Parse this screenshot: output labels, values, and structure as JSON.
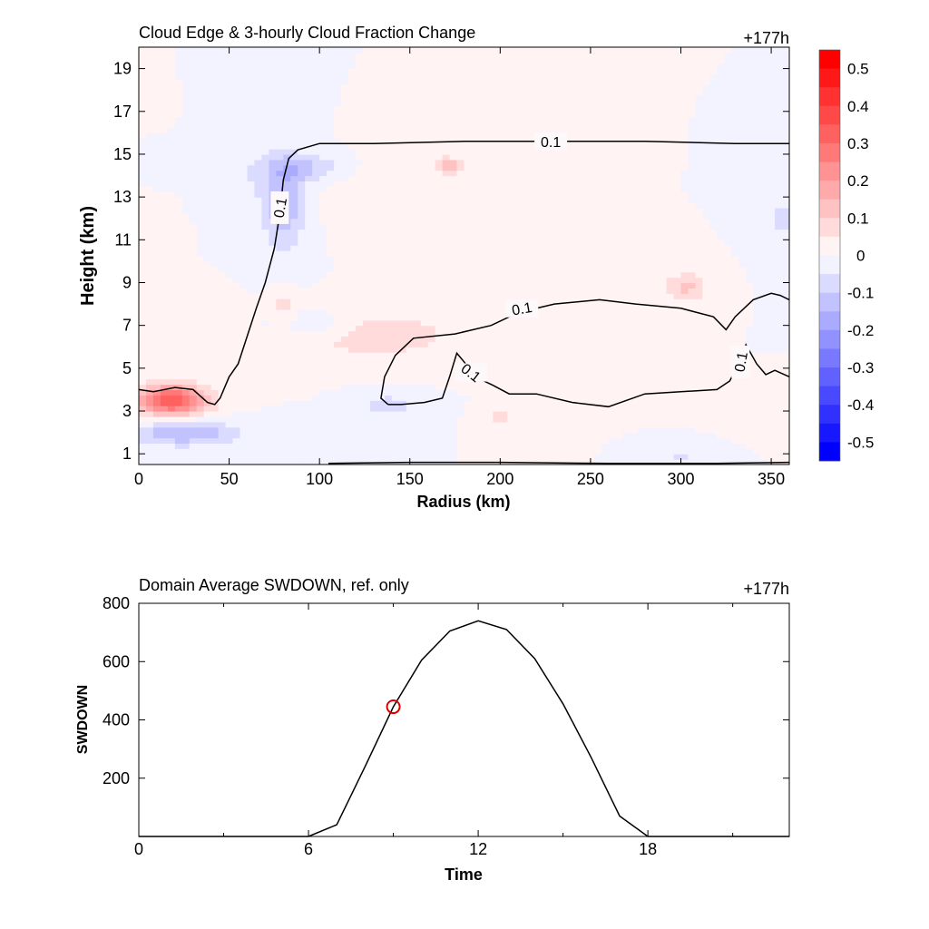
{
  "chart_data": [
    {
      "type": "heatmap",
      "title": "Cloud Edge & 3-hourly Cloud Fraction Change",
      "time_label": "+177h",
      "xlabel": "Radius (km)",
      "ylabel": "Height (km)",
      "xlim": [
        0,
        360
      ],
      "ylim": [
        0.5,
        20
      ],
      "xticks": [
        0,
        50,
        100,
        150,
        200,
        250,
        300,
        350
      ],
      "yticks": [
        1,
        3,
        5,
        7,
        9,
        11,
        13,
        15,
        17,
        19
      ],
      "colorbar": {
        "ticks": [
          "0.5",
          "0.4",
          "0.3",
          "0.2",
          "0.1",
          "0",
          "-0.1",
          "-0.2",
          "-0.3",
          "-0.4",
          "-0.5"
        ],
        "range": [
          -0.55,
          0.55
        ],
        "levels": 22,
        "low_color": "#0000ff",
        "mid_color": "#ffffff",
        "high_color": "#ff0000"
      },
      "anomalies": [
        {
          "x": 18,
          "y": 3.5,
          "rx": 20,
          "ry": 0.7,
          "value": 0.35
        },
        {
          "x": 25,
          "y": 2.0,
          "rx": 30,
          "ry": 0.6,
          "value": -0.15
        },
        {
          "x": 80,
          "y": 12.8,
          "rx": 12,
          "ry": 2.2,
          "value": -0.15
        },
        {
          "x": 92,
          "y": 14.4,
          "rx": 20,
          "ry": 0.6,
          "value": -0.1
        },
        {
          "x": 130,
          "y": 6.6,
          "rx": 45,
          "ry": 1.1,
          "value": 0.09
        },
        {
          "x": 100,
          "y": 7.0,
          "rx": 25,
          "ry": 0.7,
          "value": -0.06
        },
        {
          "x": 172,
          "y": 14.5,
          "rx": 9,
          "ry": 0.4,
          "value": 0.12
        },
        {
          "x": 303,
          "y": 8.8,
          "rx": 12,
          "ry": 0.7,
          "value": 0.11
        },
        {
          "x": 138,
          "y": 3.3,
          "rx": 16,
          "ry": 0.5,
          "value": -0.08
        },
        {
          "x": 80,
          "y": 8.0,
          "rx": 6,
          "ry": 0.8,
          "value": 0.07
        },
        {
          "x": 200,
          "y": 2.8,
          "rx": 8,
          "ry": 0.4,
          "value": 0.08
        },
        {
          "x": 230,
          "y": 9.2,
          "rx": 40,
          "ry": 0.8,
          "value": 0.04
        },
        {
          "x": 355,
          "y": 12.0,
          "rx": 10,
          "ry": 1.5,
          "value": -0.06
        },
        {
          "x": 300,
          "y": 0.9,
          "rx": 8,
          "ry": 0.3,
          "value": -0.08
        },
        {
          "x": 350,
          "y": 3.6,
          "rx": 15,
          "ry": 0.5,
          "value": 0.05
        },
        {
          "x": 60,
          "y": 14.0,
          "rx": 10,
          "ry": 1.0,
          "value": -0.04
        },
        {
          "x": 140,
          "y": 13.0,
          "rx": 30,
          "ry": 1.5,
          "value": 0.04
        }
      ],
      "contours": [
        {
          "label": "0.1",
          "label_pos": {
            "x": 228,
            "y": 15.6
          },
          "label_rot": 0,
          "points": [
            [
              0,
              4.0
            ],
            [
              8,
              3.9
            ],
            [
              20,
              4.1
            ],
            [
              30,
              4.0
            ],
            [
              38,
              3.4
            ],
            [
              42,
              3.3
            ],
            [
              45,
              3.6
            ],
            [
              50,
              4.6
            ],
            [
              55,
              5.2
            ],
            [
              60,
              6.5
            ],
            [
              65,
              7.8
            ],
            [
              70,
              9.0
            ],
            [
              75,
              10.6
            ],
            [
              78,
              12.2
            ],
            [
              80,
              13.8
            ],
            [
              83,
              14.8
            ],
            [
              88,
              15.2
            ],
            [
              100,
              15.5
            ],
            [
              130,
              15.5
            ],
            [
              180,
              15.6
            ],
            [
              230,
              15.6
            ],
            [
              280,
              15.6
            ],
            [
              330,
              15.5
            ],
            [
              360,
              15.5
            ]
          ]
        },
        {
          "label": "0.1",
          "label_pos": {
            "x": 212,
            "y": 7.8
          },
          "label_rot": -10,
          "points": [
            [
              138,
              3.3
            ],
            [
              134,
              3.6
            ],
            [
              136,
              4.6
            ],
            [
              142,
              5.6
            ],
            [
              152,
              6.4
            ],
            [
              175,
              6.6
            ],
            [
              195,
              7.0
            ],
            [
              210,
              7.6
            ],
            [
              230,
              8.0
            ],
            [
              255,
              8.2
            ],
            [
              275,
              8.0
            ],
            [
              300,
              7.8
            ],
            [
              318,
              7.4
            ],
            [
              325,
              6.8
            ],
            [
              330,
              7.4
            ],
            [
              340,
              8.2
            ],
            [
              350,
              8.5
            ],
            [
              355,
              8.4
            ],
            [
              360,
              8.2
            ]
          ]
        },
        {
          "label": "0.1",
          "label_pos": {
            "x": 184,
            "y": 4.8
          },
          "label_rot": 38,
          "points": [
            [
              138,
              3.3
            ],
            [
              145,
              3.3
            ],
            [
              158,
              3.4
            ],
            [
              168,
              3.6
            ],
            [
              172,
              4.6
            ],
            [
              176,
              5.7
            ],
            [
              180,
              5.3
            ],
            [
              186,
              4.6
            ],
            [
              196,
              4.2
            ],
            [
              205,
              3.8
            ],
            [
              220,
              3.8
            ],
            [
              240,
              3.4
            ],
            [
              260,
              3.2
            ],
            [
              280,
              3.8
            ],
            [
              300,
              3.9
            ],
            [
              320,
              4.0
            ],
            [
              327,
              4.4
            ],
            [
              332,
              5.2
            ],
            [
              336,
              6.1
            ],
            [
              342,
              5.2
            ],
            [
              347,
              4.7
            ],
            [
              352,
              4.9
            ],
            [
              360,
              4.6
            ]
          ]
        },
        {
          "label": "",
          "points": [
            [
              105,
              0.55
            ],
            [
              150,
              0.6
            ],
            [
              200,
              0.6
            ],
            [
              260,
              0.55
            ],
            [
              320,
              0.55
            ],
            [
              360,
              0.6
            ]
          ]
        }
      ],
      "vertical_labels": [
        {
          "text": "0.1",
          "x": 78,
          "y": 12.5
        },
        {
          "text": "0.1",
          "x": 333,
          "y": 5.3
        }
      ]
    },
    {
      "type": "line",
      "title": "Domain Average SWDOWN, ref. only",
      "time_label": "+177h",
      "xlabel": "Time",
      "ylabel": "SWDOWN",
      "xlim": [
        0,
        23
      ],
      "ylim": [
        0,
        800
      ],
      "xticks": [
        0,
        6,
        12,
        18
      ],
      "yticks": [
        200,
        400,
        600,
        800
      ],
      "x": [
        0,
        1,
        2,
        3,
        4,
        5,
        6,
        7,
        8,
        9,
        10,
        11,
        12,
        13,
        14,
        15,
        16,
        17,
        18,
        19,
        20,
        21,
        22,
        23
      ],
      "series": [
        {
          "values": [
            0,
            0,
            0,
            0,
            0,
            0,
            0,
            40,
            240,
            445,
            605,
            705,
            740,
            710,
            610,
            455,
            270,
            70,
            0,
            0,
            0,
            0,
            0,
            0
          ],
          "color": "#000000"
        }
      ],
      "marker": {
        "x": 9,
        "y": 445,
        "color": "#dd0000"
      }
    }
  ]
}
